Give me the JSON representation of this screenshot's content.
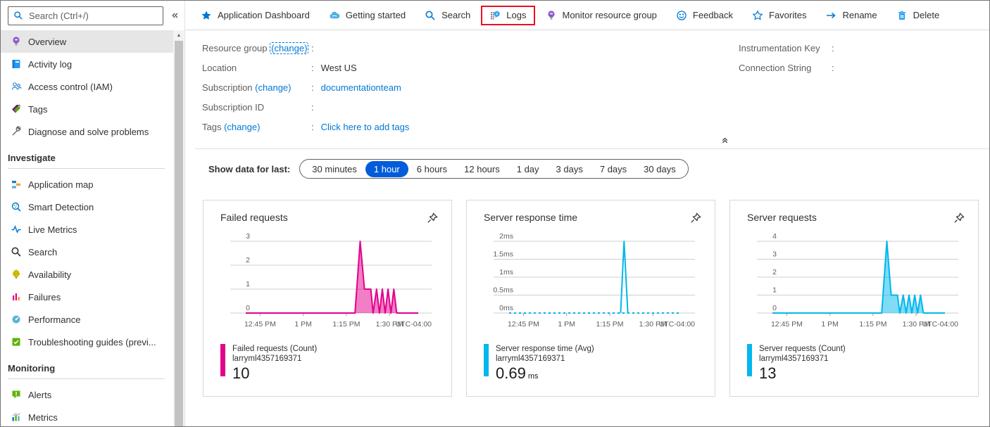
{
  "colors": {
    "accent": "#0078d4",
    "selected_pill": "#015cda",
    "failed_pink": "#e3008c",
    "cyan": "#00b7ed",
    "highlight_red": "#e81123"
  },
  "sidebar": {
    "search": {
      "placeholder": "Search (Ctrl+/)"
    },
    "collapse_icon": "«",
    "items": [
      {
        "label": "Overview",
        "icon": "lightbulb-icon",
        "selected": true
      },
      {
        "label": "Activity log",
        "icon": "activity-log-icon"
      },
      {
        "label": "Access control (IAM)",
        "icon": "access-control-icon"
      },
      {
        "label": "Tags",
        "icon": "tags-icon"
      },
      {
        "label": "Diagnose and solve problems",
        "icon": "wrench-icon"
      },
      {
        "header": "Investigate"
      },
      {
        "label": "Application map",
        "icon": "application-map-icon"
      },
      {
        "label": "Smart Detection",
        "icon": "smart-detection-icon"
      },
      {
        "label": "Live Metrics",
        "icon": "live-metrics-icon"
      },
      {
        "label": "Search",
        "icon": "search-dark-icon"
      },
      {
        "label": "Availability",
        "icon": "availability-icon"
      },
      {
        "label": "Failures",
        "icon": "failures-icon"
      },
      {
        "label": "Performance",
        "icon": "performance-icon"
      },
      {
        "label": "Troubleshooting guides (previ...",
        "icon": "troubleshooting-icon"
      },
      {
        "header": "Monitoring"
      },
      {
        "label": "Alerts",
        "icon": "alerts-icon"
      },
      {
        "label": "Metrics",
        "icon": "metrics-icon"
      }
    ]
  },
  "toolbar": {
    "items": [
      {
        "label": "Application Dashboard",
        "icon": "star-filled-icon"
      },
      {
        "label": "Getting started",
        "icon": "cloud-icon"
      },
      {
        "label": "Search",
        "icon": "search-icon"
      },
      {
        "label": "Logs",
        "icon": "logs-icon",
        "highlighted": true
      },
      {
        "label": "Monitor resource group",
        "icon": "monitor-lightbulb-icon"
      },
      {
        "label": "Feedback",
        "icon": "smiley-icon"
      },
      {
        "label": "Favorites",
        "icon": "star-outline-icon"
      },
      {
        "label": "Rename",
        "icon": "arrow-right-icon"
      },
      {
        "label": "Delete",
        "icon": "trash-icon"
      }
    ]
  },
  "essentials": {
    "separator": ":",
    "left": [
      {
        "label": "Resource group",
        "change": "(change)",
        "value": "",
        "change_focused": true
      },
      {
        "label": "Location",
        "value": "West US"
      },
      {
        "label": "Subscription",
        "change": "(change)",
        "value": "documentationteam",
        "value_link": true
      },
      {
        "label": "Subscription ID",
        "value": ""
      },
      {
        "label": "Tags",
        "change": "(change)",
        "value": "Click here to add tags",
        "value_link": true
      }
    ],
    "right": [
      {
        "label": "Instrumentation Key",
        "value": ""
      },
      {
        "label": "Connection String",
        "value": ""
      }
    ]
  },
  "time_range": {
    "label": "Show data for last:",
    "options": [
      "30 minutes",
      "1 hour",
      "6 hours",
      "12 hours",
      "1 day",
      "3 days",
      "7 days",
      "30 days"
    ],
    "selected": "1 hour"
  },
  "chart_data": [
    {
      "type": "area",
      "title": "Failed requests",
      "xlim": [
        0,
        60
      ],
      "ylim": [
        0,
        3
      ],
      "grid": true,
      "legend_position": "bottom-left",
      "xticks": [
        {
          "t": 5,
          "label": "12:45 PM"
        },
        {
          "t": 20,
          "label": "1 PM"
        },
        {
          "t": 35,
          "label": "1:15 PM"
        },
        {
          "t": 50,
          "label": "1:30 PM"
        }
      ],
      "x_suffix": "UTC-04:00",
      "yticks": [
        {
          "v": 0,
          "label": "0"
        },
        {
          "v": 1,
          "label": "1"
        },
        {
          "v": 2,
          "label": "2"
        },
        {
          "v": 3,
          "label": "3"
        }
      ],
      "series": [
        {
          "name": "Failed requests (Count)",
          "resource": "larryml4357169371",
          "total": "10",
          "unit": "",
          "color": "#e3008c",
          "points": [
            [
              0,
              0
            ],
            [
              38,
              0
            ],
            [
              39.8,
              3
            ],
            [
              41.3,
              1
            ],
            [
              43.5,
              1
            ],
            [
              44.3,
              0
            ],
            [
              45.5,
              1
            ],
            [
              46.5,
              0
            ],
            [
              47.5,
              1
            ],
            [
              48.5,
              0
            ],
            [
              49.5,
              1
            ],
            [
              50.5,
              0
            ],
            [
              51.5,
              1
            ],
            [
              52.5,
              0
            ],
            [
              60,
              0
            ]
          ]
        }
      ]
    },
    {
      "type": "line",
      "title": "Server response time",
      "xlim": [
        0,
        60
      ],
      "ylim": [
        0,
        2
      ],
      "grid": true,
      "legend_position": "bottom-left",
      "xticks": [
        {
          "t": 5,
          "label": "12:45 PM"
        },
        {
          "t": 20,
          "label": "1 PM"
        },
        {
          "t": 35,
          "label": "1:15 PM"
        },
        {
          "t": 50,
          "label": "1:30 PM"
        }
      ],
      "x_suffix": "UTC-04:00",
      "yticks": [
        {
          "v": 0,
          "label": "0ms"
        },
        {
          "v": 0.5,
          "label": "0.5ms"
        },
        {
          "v": 1,
          "label": "1ms"
        },
        {
          "v": 1.5,
          "label": "1.5ms"
        },
        {
          "v": 2,
          "label": "2ms"
        }
      ],
      "series": [
        {
          "name": "Server response time (Avg)",
          "resource": "larryml4357169371",
          "total": "0.69",
          "unit": "ms",
          "color": "#00b7ed",
          "baseline_dashed": true,
          "points": [
            [
              38.8,
              0
            ],
            [
              40,
              2
            ],
            [
              41.3,
              0
            ]
          ]
        }
      ]
    },
    {
      "type": "area",
      "title": "Server requests",
      "xlim": [
        0,
        60
      ],
      "ylim": [
        0,
        4
      ],
      "grid": true,
      "legend_position": "bottom-left",
      "xticks": [
        {
          "t": 5,
          "label": "12:45 PM"
        },
        {
          "t": 20,
          "label": "1 PM"
        },
        {
          "t": 35,
          "label": "1:15 PM"
        },
        {
          "t": 50,
          "label": "1:30 PM"
        }
      ],
      "x_suffix": "UTC-04:00",
      "yticks": [
        {
          "v": 0,
          "label": "0"
        },
        {
          "v": 1,
          "label": "1"
        },
        {
          "v": 2,
          "label": "2"
        },
        {
          "v": 3,
          "label": "3"
        },
        {
          "v": 4,
          "label": "4"
        }
      ],
      "series": [
        {
          "name": "Server requests (Count)",
          "resource": "larryml4357169371",
          "total": "13",
          "unit": "",
          "color": "#00b7ed",
          "points": [
            [
              0,
              0
            ],
            [
              38,
              0
            ],
            [
              39.8,
              4
            ],
            [
              41.3,
              1
            ],
            [
              43.5,
              1
            ],
            [
              44.3,
              0
            ],
            [
              45.5,
              1
            ],
            [
              46.5,
              0
            ],
            [
              47.5,
              1
            ],
            [
              48.5,
              0
            ],
            [
              49.5,
              1
            ],
            [
              50.5,
              0
            ],
            [
              51.5,
              1
            ],
            [
              52.5,
              0
            ],
            [
              60,
              0
            ]
          ]
        }
      ]
    }
  ]
}
